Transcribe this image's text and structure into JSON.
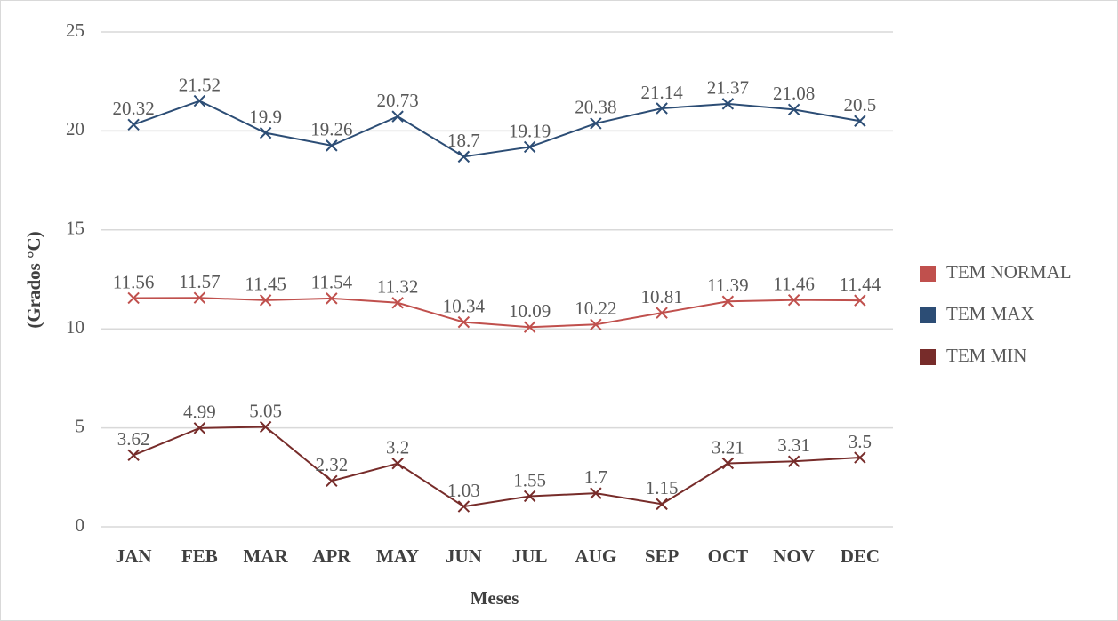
{
  "chart_data": {
    "type": "line",
    "y_label": "(Grados °C)",
    "x_label": "Meses",
    "categories": [
      "JAN",
      "FEB",
      "MAR",
      "APR",
      "MAY",
      "JUN",
      "JUL",
      "AUG",
      "SEP",
      "OCT",
      "NOV",
      "DEC"
    ],
    "series": [
      {
        "name": "TEM NORMAL",
        "color": "#c0504d",
        "values": [
          11.56,
          11.57,
          11.45,
          11.54,
          11.32,
          10.34,
          10.09,
          10.22,
          10.81,
          11.39,
          11.46,
          11.44
        ]
      },
      {
        "name": "TEM MAX",
        "color": "#2c4d75",
        "values": [
          20.32,
          21.52,
          19.9,
          19.26,
          20.73,
          18.7,
          19.19,
          20.38,
          21.14,
          21.37,
          21.08,
          20.5
        ]
      },
      {
        "name": "TEM MIN",
        "color": "#772c2a",
        "values": [
          3.62,
          4.99,
          5.05,
          2.32,
          3.2,
          1.03,
          1.55,
          1.7,
          1.15,
          3.21,
          3.31,
          3.5
        ]
      }
    ],
    "ylim": [
      0,
      25
    ],
    "yticks": [
      0,
      5,
      10,
      15,
      20,
      25
    ],
    "grid": true,
    "legend": "right"
  }
}
